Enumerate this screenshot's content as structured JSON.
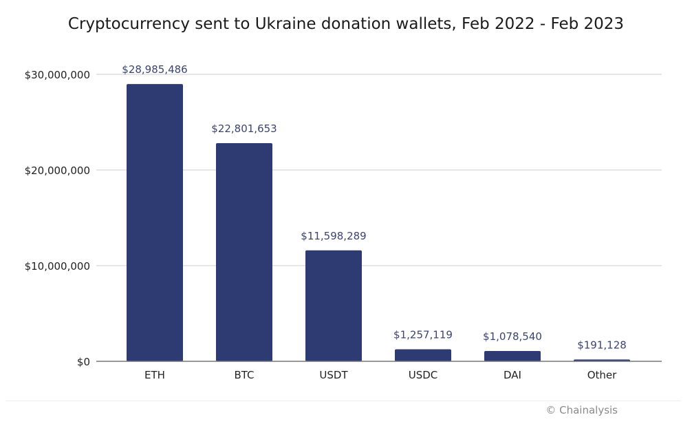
{
  "chart_data": {
    "type": "bar",
    "title": "Cryptocurrency sent to Ukraine donation wallets, Feb 2022 - Feb 2023",
    "categories": [
      "ETH",
      "BTC",
      "USDT",
      "USDC",
      "DAI",
      "Other"
    ],
    "values": [
      28985486,
      22801653,
      11598289,
      1257119,
      1078540,
      191128
    ],
    "data_labels": [
      "$28,985,486",
      "$22,801,653",
      "$11,598,289",
      "$1,257,119",
      "$1,078,540",
      "$191,128"
    ],
    "ylim": [
      0,
      30000000
    ],
    "yticks": [
      0,
      10000000,
      20000000,
      30000000
    ],
    "ytick_labels": [
      "$0",
      "$10,000,000",
      "$20,000,000",
      "$30,000,000"
    ],
    "xlabel": "",
    "ylabel": "",
    "grid": true,
    "colors": {
      "bar": "#2e3b73",
      "label": "#3b4470",
      "grid": "#dddddd",
      "axis": "#777777"
    }
  },
  "credit": "© Chainalysis"
}
